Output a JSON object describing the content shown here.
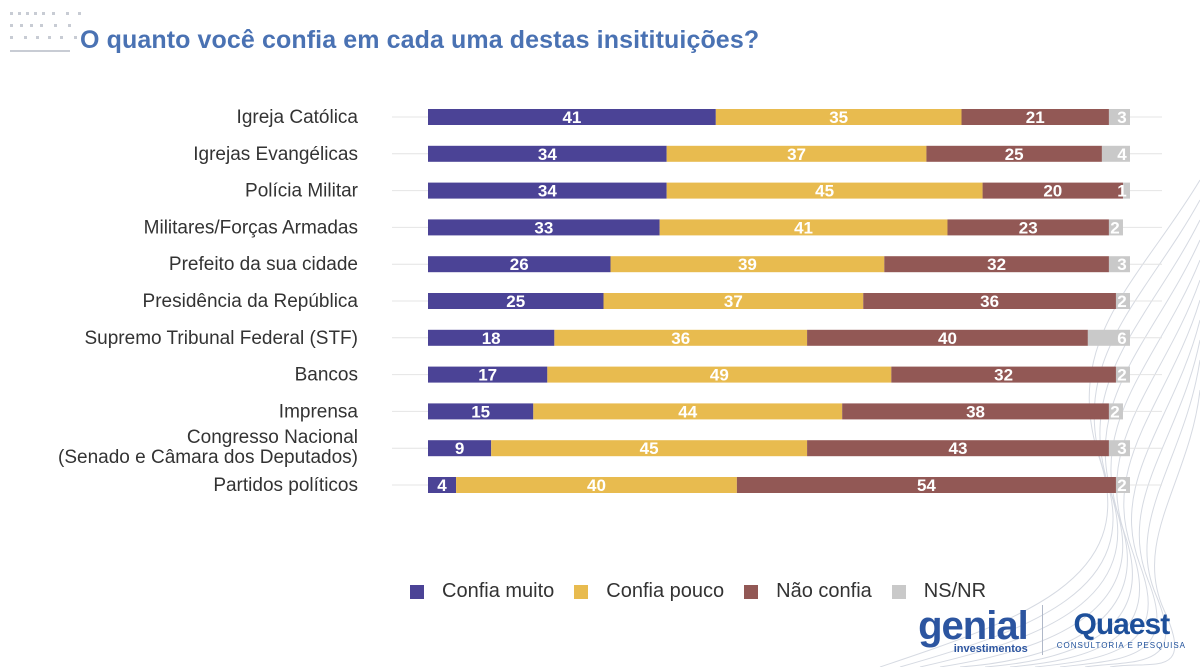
{
  "title": "O quanto você confia em cada uma destas insitituições?",
  "colors": {
    "title": "#4a72b3",
    "confia_muito": "#4b4396",
    "confia_pouco": "#e8bb4f",
    "nao_confia": "#925855",
    "ns_nr": "#c9c9c9"
  },
  "chart_data": {
    "type": "bar",
    "orientation": "horizontal",
    "stacked": true,
    "title": "O quanto você confia em cada uma destas insitituições?",
    "categories": [
      [
        "Igreja Católica"
      ],
      [
        "Igrejas Evangélicas"
      ],
      [
        "Polícia Militar"
      ],
      [
        "Militares/Forças Armadas"
      ],
      [
        "Prefeito da sua cidade"
      ],
      [
        "Presidência da República"
      ],
      [
        "Supremo Tribunal Federal (STF)"
      ],
      [
        "Bancos"
      ],
      [
        "Imprensa"
      ],
      [
        "Congresso Nacional",
        "(Senado e Câmara dos Deputados)"
      ],
      [
        "Partidos políticos"
      ]
    ],
    "series": [
      {
        "name": "Confia muito",
        "color": "#4b4396",
        "values": [
          41,
          34,
          34,
          33,
          26,
          25,
          18,
          17,
          15,
          9,
          4
        ]
      },
      {
        "name": "Confia pouco",
        "color": "#e8bb4f",
        "values": [
          35,
          37,
          45,
          41,
          39,
          37,
          36,
          49,
          44,
          45,
          40
        ]
      },
      {
        "name": "Não confia",
        "color": "#925855",
        "values": [
          21,
          25,
          20,
          23,
          32,
          36,
          40,
          32,
          38,
          43,
          54
        ]
      },
      {
        "name": "NS/NR",
        "color": "#c9c9c9",
        "values": [
          3,
          4,
          1,
          2,
          3,
          2,
          6,
          2,
          2,
          3,
          2
        ]
      }
    ],
    "xlim": [
      0,
      100
    ],
    "legend_position": "bottom",
    "grid": false
  },
  "legend": [
    {
      "label": "Confia muito",
      "color": "#4b4396"
    },
    {
      "label": "Confia pouco",
      "color": "#e8bb4f"
    },
    {
      "label": "Não confia",
      "color": "#925855"
    },
    {
      "label": "NS/NR",
      "color": "#c9c9c9"
    }
  ],
  "logos": {
    "genial": {
      "name": "genial",
      "sub": "investimentos"
    },
    "quaest": {
      "name": "Quaest",
      "sub": "CONSULTORIA E PESQUISA"
    }
  }
}
